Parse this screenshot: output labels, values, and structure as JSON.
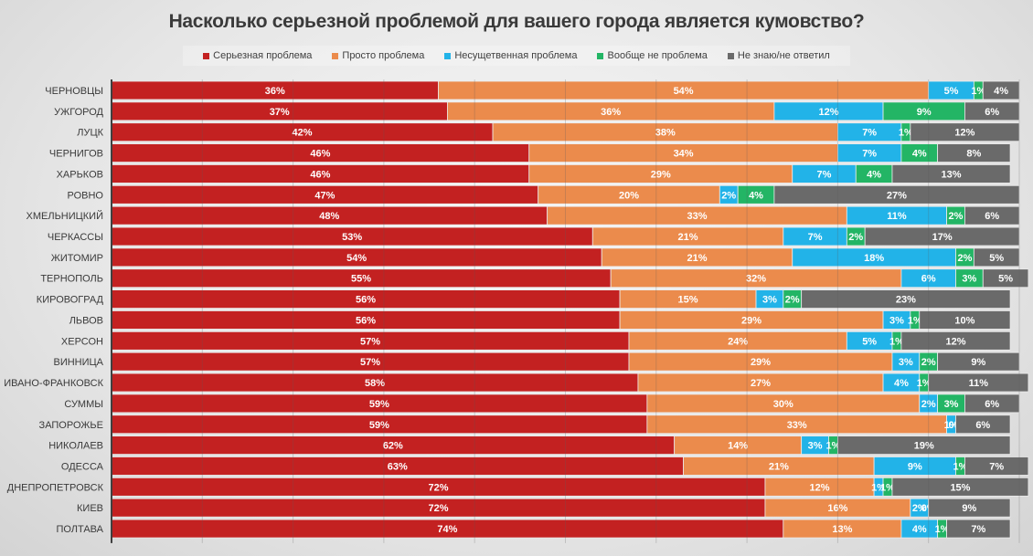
{
  "chart_data": {
    "type": "bar",
    "orientation": "horizontal-stacked-100",
    "title": "Насколько серьезной проблемой для вашего города является кумовство?",
    "xlabel": "",
    "ylabel": "",
    "xlim": [
      0,
      100
    ],
    "grid": true,
    "legend_position": "top",
    "categories": [
      "ЧЕРНОВЦЫ",
      "УЖГОРОД",
      "ЛУЦК",
      "ЧЕРНИГОВ",
      "ХАРЬКОВ",
      "РОВНО",
      "ХМЕЛЬНИЦКИЙ",
      "ЧЕРКАССЫ",
      "ЖИТОМИР",
      "ТЕРНОПОЛЬ",
      "КИРОВОГРАД",
      "ЛЬВОВ",
      "ХЕРСОН",
      "ВИННИЦА",
      "ИВАНО-ФРАНКОВСК",
      "СУММЫ",
      "ЗАПОРОЖЬЕ",
      "НИКОЛАЕВ",
      "ОДЕССА",
      "ДНЕПРОПЕТРОВСК",
      "КИЕВ",
      "ПОЛТАВА"
    ],
    "series": [
      {
        "name": "Серьезная проблема",
        "color": "#c32121",
        "values": [
          36,
          37,
          42,
          46,
          46,
          47,
          48,
          53,
          54,
          55,
          56,
          56,
          57,
          57,
          58,
          59,
          59,
          62,
          63,
          72,
          72,
          74
        ]
      },
      {
        "name": "Просто проблема",
        "color": "#eb8b4c",
        "values": [
          54,
          36,
          38,
          34,
          29,
          20,
          33,
          21,
          21,
          32,
          15,
          29,
          24,
          29,
          27,
          30,
          33,
          14,
          21,
          12,
          16,
          13
        ]
      },
      {
        "name": "Несущетвенная проблема",
        "color": "#22b3e8",
        "values": [
          5,
          12,
          7,
          7,
          7,
          2,
          11,
          7,
          18,
          6,
          3,
          3,
          5,
          3,
          4,
          2,
          1,
          3,
          9,
          1,
          2,
          4
        ]
      },
      {
        "name": "Вообще не проблема",
        "color": "#23b565",
        "values": [
          1,
          9,
          1,
          4,
          4,
          4,
          2,
          2,
          2,
          3,
          2,
          1,
          1,
          2,
          1,
          3,
          0,
          1,
          1,
          1,
          0,
          1
        ]
      },
      {
        "name": "Не знаю/не ответил",
        "color": "#6a6a6a",
        "values": [
          4,
          6,
          12,
          8,
          13,
          27,
          6,
          17,
          5,
          5,
          23,
          10,
          12,
          9,
          11,
          6,
          6,
          19,
          7,
          15,
          9,
          7
        ]
      }
    ]
  }
}
